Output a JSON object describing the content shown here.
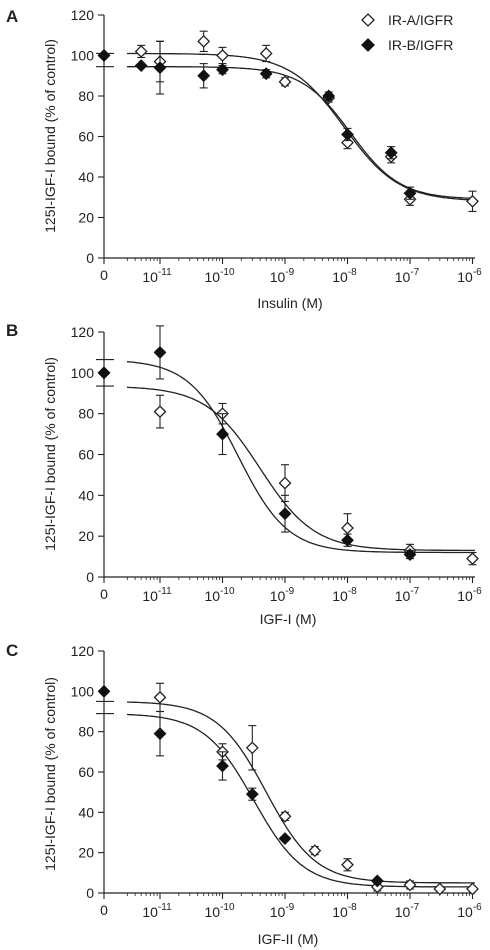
{
  "figure": {
    "legend": [
      {
        "name": "IR-A/IGFR",
        "marker": "open-diamond"
      },
      {
        "name": "IR-B/IGFR",
        "marker": "filled-diamond"
      }
    ]
  },
  "chart_data": [
    {
      "type": "scatter",
      "panel": "A",
      "xlabel": "Insulin (M)",
      "ylabel": "125I-IGF-I bound (% of control)",
      "x_scale": "log, with zero control point on the left",
      "ylim": [
        0,
        120
      ],
      "y_ticks": [
        "0",
        "20",
        "40",
        "60",
        "80",
        "100",
        "120"
      ],
      "x_ticks": [
        {
          "label": "0",
          "value": 0
        },
        {
          "base": "10",
          "exp": "-11",
          "value": 1e-11
        },
        {
          "base": "10",
          "exp": "-10",
          "value": 1e-10
        },
        {
          "base": "10",
          "exp": "-9",
          "value": 1e-09
        },
        {
          "base": "10",
          "exp": "-8",
          "value": 1e-08
        },
        {
          "base": "10",
          "exp": "-7",
          "value": 1e-07
        },
        {
          "base": "10",
          "exp": "-6",
          "value": 1e-06
        }
      ],
      "grid": false,
      "legend_position": "top-right",
      "series": [
        {
          "name": "IR-A/IGFR",
          "marker": "open-diamond",
          "points": [
            {
              "x": 0,
              "y": 100,
              "err": 0
            },
            {
              "x": 5e-12,
              "y": 102,
              "err": 3
            },
            {
              "x": 1e-11,
              "y": 97,
              "err": 10
            },
            {
              "x": 5e-11,
              "y": 107,
              "err": 5
            },
            {
              "x": 1e-10,
              "y": 100,
              "err": 4
            },
            {
              "x": 5e-10,
              "y": 101,
              "err": 4
            },
            {
              "x": 1e-09,
              "y": 87,
              "err": 2
            },
            {
              "x": 5e-09,
              "y": 79,
              "err": 2
            },
            {
              "x": 1e-08,
              "y": 57,
              "err": 3
            },
            {
              "x": 5e-08,
              "y": 50,
              "err": 3
            },
            {
              "x": 1e-07,
              "y": 29,
              "err": 3
            },
            {
              "x": 1e-06,
              "y": 28,
              "err": 5
            }
          ],
          "fit": {
            "top": 101,
            "bottom": 28,
            "log_ic50": -8.05,
            "hill": 1.0
          }
        },
        {
          "name": "IR-B/IGFR",
          "marker": "filled-diamond",
          "points": [
            {
              "x": 0,
              "y": 100,
              "err": 0
            },
            {
              "x": 5e-12,
              "y": 95,
              "err": 0
            },
            {
              "x": 1e-11,
              "y": 94,
              "err": 13
            },
            {
              "x": 5e-11,
              "y": 90,
              "err": 6
            },
            {
              "x": 1e-10,
              "y": 93,
              "err": 2
            },
            {
              "x": 5e-10,
              "y": 91,
              "err": 2
            },
            {
              "x": 5e-09,
              "y": 80,
              "err": 2
            },
            {
              "x": 1e-08,
              "y": 61,
              "err": 3
            },
            {
              "x": 5e-08,
              "y": 52,
              "err": 3
            },
            {
              "x": 1e-07,
              "y": 32,
              "err": 3
            }
          ],
          "fit": {
            "top": 94.5,
            "bottom": 29,
            "log_ic50": -7.95,
            "hill": 1.1
          }
        }
      ]
    },
    {
      "type": "scatter",
      "panel": "B",
      "xlabel": "IGF-I (M)",
      "ylabel": "125I-IGF-I bound (% of control)",
      "x_scale": "log, with zero control point on the left",
      "ylim": [
        0,
        120
      ],
      "y_ticks": [
        "0",
        "20",
        "40",
        "60",
        "80",
        "100",
        "120"
      ],
      "x_ticks": [
        {
          "label": "0",
          "value": 0
        },
        {
          "base": "10",
          "exp": "-11",
          "value": 1e-11
        },
        {
          "base": "10",
          "exp": "-10",
          "value": 1e-10
        },
        {
          "base": "10",
          "exp": "-9",
          "value": 1e-09
        },
        {
          "base": "10",
          "exp": "-8",
          "value": 1e-08
        },
        {
          "base": "10",
          "exp": "-7",
          "value": 1e-07
        },
        {
          "base": "10",
          "exp": "-6",
          "value": 1e-06
        }
      ],
      "grid": false,
      "legend_position": "none",
      "series": [
        {
          "name": "IR-A/IGFR",
          "marker": "open-diamond",
          "points": [
            {
              "x": 0,
              "y": 100,
              "err": 0
            },
            {
              "x": 1e-11,
              "y": 81,
              "err": 8
            },
            {
              "x": 1e-10,
              "y": 80,
              "err": 5
            },
            {
              "x": 1e-09,
              "y": 46,
              "err": 9
            },
            {
              "x": 1e-08,
              "y": 24,
              "err": 7
            },
            {
              "x": 1e-07,
              "y": 13,
              "err": 3
            },
            {
              "x": 1e-06,
              "y": 9,
              "err": 3
            }
          ],
          "fit": {
            "top": 93.5,
            "bottom": 13,
            "log_ic50": -9.4,
            "hill": 1.0
          }
        },
        {
          "name": "IR-B/IGFR",
          "marker": "filled-diamond",
          "points": [
            {
              "x": 0,
              "y": 100,
              "err": 0
            },
            {
              "x": 1e-11,
              "y": 110,
              "err": 13
            },
            {
              "x": 1e-10,
              "y": 70,
              "err": 10
            },
            {
              "x": 1e-09,
              "y": 31,
              "err": 9
            },
            {
              "x": 1e-08,
              "y": 18,
              "err": 3
            },
            {
              "x": 1e-07,
              "y": 11,
              "err": 2
            }
          ],
          "fit": {
            "top": 106.5,
            "bottom": 12,
            "log_ic50": -9.75,
            "hill": 1.1
          }
        }
      ]
    },
    {
      "type": "scatter",
      "panel": "C",
      "xlabel": "IGF-II (M)",
      "ylabel": "125I-IGF-I bound (% of control)",
      "x_scale": "log, with zero control point on the left",
      "ylim": [
        0,
        120
      ],
      "y_ticks": [
        "0",
        "20",
        "40",
        "60",
        "80",
        "100",
        "120"
      ],
      "x_ticks": [
        {
          "label": "0",
          "value": 0
        },
        {
          "base": "10",
          "exp": "-11",
          "value": 1e-11
        },
        {
          "base": "10",
          "exp": "-10",
          "value": 1e-10
        },
        {
          "base": "10",
          "exp": "-9",
          "value": 1e-09
        },
        {
          "base": "10",
          "exp": "-8",
          "value": 1e-08
        },
        {
          "base": "10",
          "exp": "-7",
          "value": 1e-07
        },
        {
          "base": "10",
          "exp": "-6",
          "value": 1e-06
        }
      ],
      "grid": false,
      "legend_position": "none",
      "series": [
        {
          "name": "IR-A/IGFR",
          "marker": "open-diamond",
          "points": [
            {
              "x": 1e-11,
              "y": 97,
              "err": 7
            },
            {
              "x": 1e-10,
              "y": 70,
              "err": 4
            },
            {
              "x": 3e-10,
              "y": 72,
              "err": 11
            },
            {
              "x": 1e-09,
              "y": 38,
              "err": 2
            },
            {
              "x": 3e-09,
              "y": 21,
              "err": 2
            },
            {
              "x": 1e-08,
              "y": 14,
              "err": 3
            },
            {
              "x": 3e-08,
              "y": 3,
              "err": 2
            },
            {
              "x": 1e-07,
              "y": 4,
              "err": 2
            },
            {
              "x": 3e-07,
              "y": 2,
              "err": 1
            },
            {
              "x": 1e-06,
              "y": 2,
              "err": 1
            }
          ],
          "fit": {
            "top": 95,
            "bottom": 5,
            "log_ic50": -9.3,
            "hill": 1.1
          }
        },
        {
          "name": "IR-B/IGFR",
          "marker": "filled-diamond",
          "points": [
            {
              "x": 0,
              "y": 100,
              "err": 0
            },
            {
              "x": 1e-11,
              "y": 79,
              "err": 11
            },
            {
              "x": 1e-10,
              "y": 63,
              "err": 7
            },
            {
              "x": 3e-10,
              "y": 49,
              "err": 3
            },
            {
              "x": 1e-09,
              "y": 27,
              "err": 1
            },
            {
              "x": 3e-08,
              "y": 6,
              "err": 1
            }
          ],
          "fit": {
            "top": 89,
            "bottom": 3,
            "log_ic50": -9.5,
            "hill": 1.1
          }
        }
      ]
    }
  ]
}
